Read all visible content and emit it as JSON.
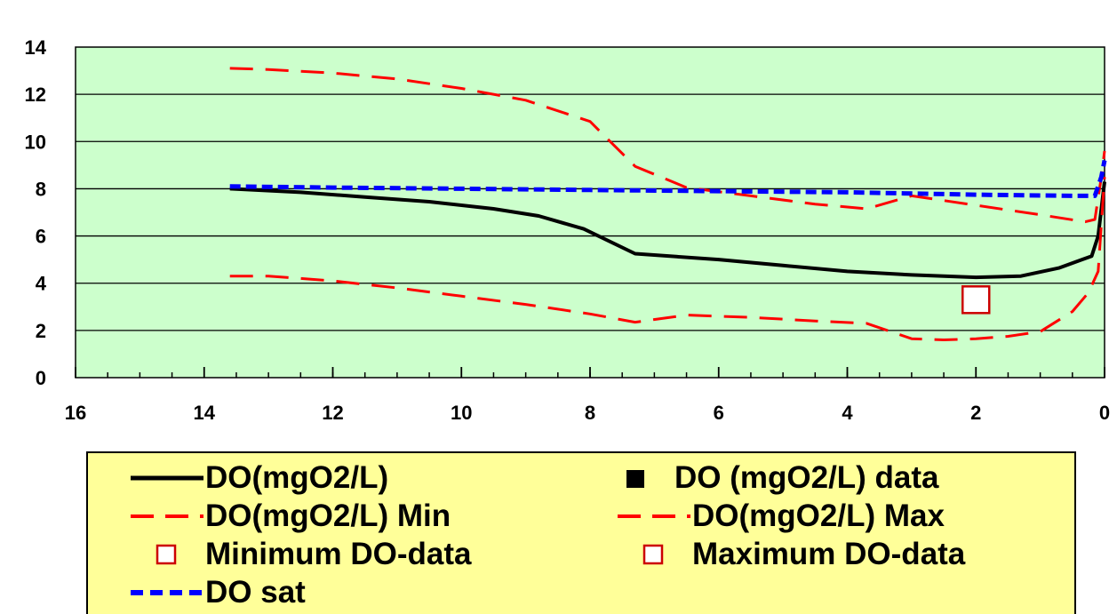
{
  "chart_data": {
    "type": "line",
    "xlim": [
      16,
      0
    ],
    "ylim": [
      0,
      14
    ],
    "x_reversed": true,
    "grid": "horizontal",
    "plot_background": "#ccffcc",
    "legend_position": "bottom",
    "x_ticks": [
      "16",
      "14",
      "12",
      "10",
      "8",
      "6",
      "4",
      "2",
      "0"
    ],
    "y_ticks": [
      "0",
      "2",
      "4",
      "6",
      "8",
      "10",
      "12",
      "14"
    ],
    "series": [
      {
        "name": "DO(mgO2/L)",
        "color": "#000000",
        "style": "solid",
        "x": [
          13.6,
          12.5,
          11.5,
          10.5,
          9.5,
          8.8,
          8.1,
          7.3,
          6.0,
          5.0,
          4.0,
          3.0,
          2.0,
          1.3,
          0.7,
          0.35,
          0.2,
          0.1,
          0.0
        ],
        "y": [
          8.0,
          7.85,
          7.65,
          7.45,
          7.15,
          6.85,
          6.3,
          5.25,
          5.0,
          4.75,
          4.5,
          4.35,
          4.25,
          4.3,
          4.65,
          5.0,
          5.15,
          6.0,
          8.3
        ]
      },
      {
        "name": "DO (mgO2/L) data",
        "color": "#000000",
        "style": "marker-filled",
        "x": [],
        "y": []
      },
      {
        "name": "DO(mgO2/L) Min",
        "color": "#ff0000",
        "style": "dashed",
        "x": [
          13.6,
          13.0,
          12.0,
          11.0,
          10.0,
          9.0,
          8.0,
          7.3,
          6.5,
          5.5,
          4.5,
          3.7,
          3.0,
          2.5,
          2.0,
          1.5,
          1.0,
          0.5,
          0.25,
          0.1,
          0.0
        ],
        "y": [
          4.3,
          4.3,
          4.1,
          3.8,
          3.45,
          3.1,
          2.7,
          2.35,
          2.65,
          2.55,
          2.4,
          2.3,
          1.65,
          1.6,
          1.65,
          1.75,
          1.95,
          2.8,
          3.6,
          4.5,
          8.5
        ]
      },
      {
        "name": "DO(mgO2/L) Max",
        "color": "#ff0000",
        "style": "dashed",
        "x": [
          13.6,
          13.0,
          12.0,
          11.0,
          10.0,
          9.0,
          8.0,
          7.3,
          6.5,
          5.5,
          4.5,
          3.7,
          3.0,
          2.0,
          1.0,
          0.3,
          0.15,
          0.05,
          0.0
        ],
        "y": [
          13.1,
          13.05,
          12.9,
          12.65,
          12.25,
          11.75,
          10.85,
          8.95,
          8.05,
          7.7,
          7.35,
          7.15,
          7.7,
          7.3,
          6.9,
          6.6,
          6.7,
          8.5,
          9.6
        ]
      },
      {
        "name": "Minimum DO-data",
        "color": "#cc0000",
        "style": "marker-open",
        "x": [
          2.0
        ],
        "y": [
          3.3
        ]
      },
      {
        "name": "Maximum DO-data",
        "color": "#cc0000",
        "style": "marker-open",
        "x": [],
        "y": []
      },
      {
        "name": "DO sat",
        "color": "#0000ff",
        "style": "dashed",
        "x": [
          13.6,
          12.0,
          10.0,
          8.0,
          6.0,
          4.0,
          2.0,
          0.5,
          0.15,
          0.05,
          0.0
        ],
        "y": [
          8.1,
          8.05,
          8.0,
          7.95,
          7.9,
          7.85,
          7.75,
          7.7,
          7.7,
          8.5,
          9.2
        ]
      }
    ]
  },
  "legend": {
    "entries": [
      {
        "label": "DO(mgO2/L)",
        "symbol": "line-solid",
        "color": "#000000"
      },
      {
        "label": "DO (mgO2/L) data",
        "symbol": "square-filled",
        "color": "#000000"
      },
      {
        "label": "DO(mgO2/L) Min",
        "symbol": "line-dashed",
        "color": "#ff0000"
      },
      {
        "label": "DO(mgO2/L) Max",
        "symbol": "line-dashed",
        "color": "#ff0000"
      },
      {
        "label": "Minimum DO-data",
        "symbol": "square-open",
        "color": "#cc0000"
      },
      {
        "label": "Maximum DO-data",
        "symbol": "square-open",
        "color": "#cc0000"
      },
      {
        "label": "DO sat",
        "symbol": "line-dashed",
        "color": "#0000ff"
      }
    ]
  }
}
